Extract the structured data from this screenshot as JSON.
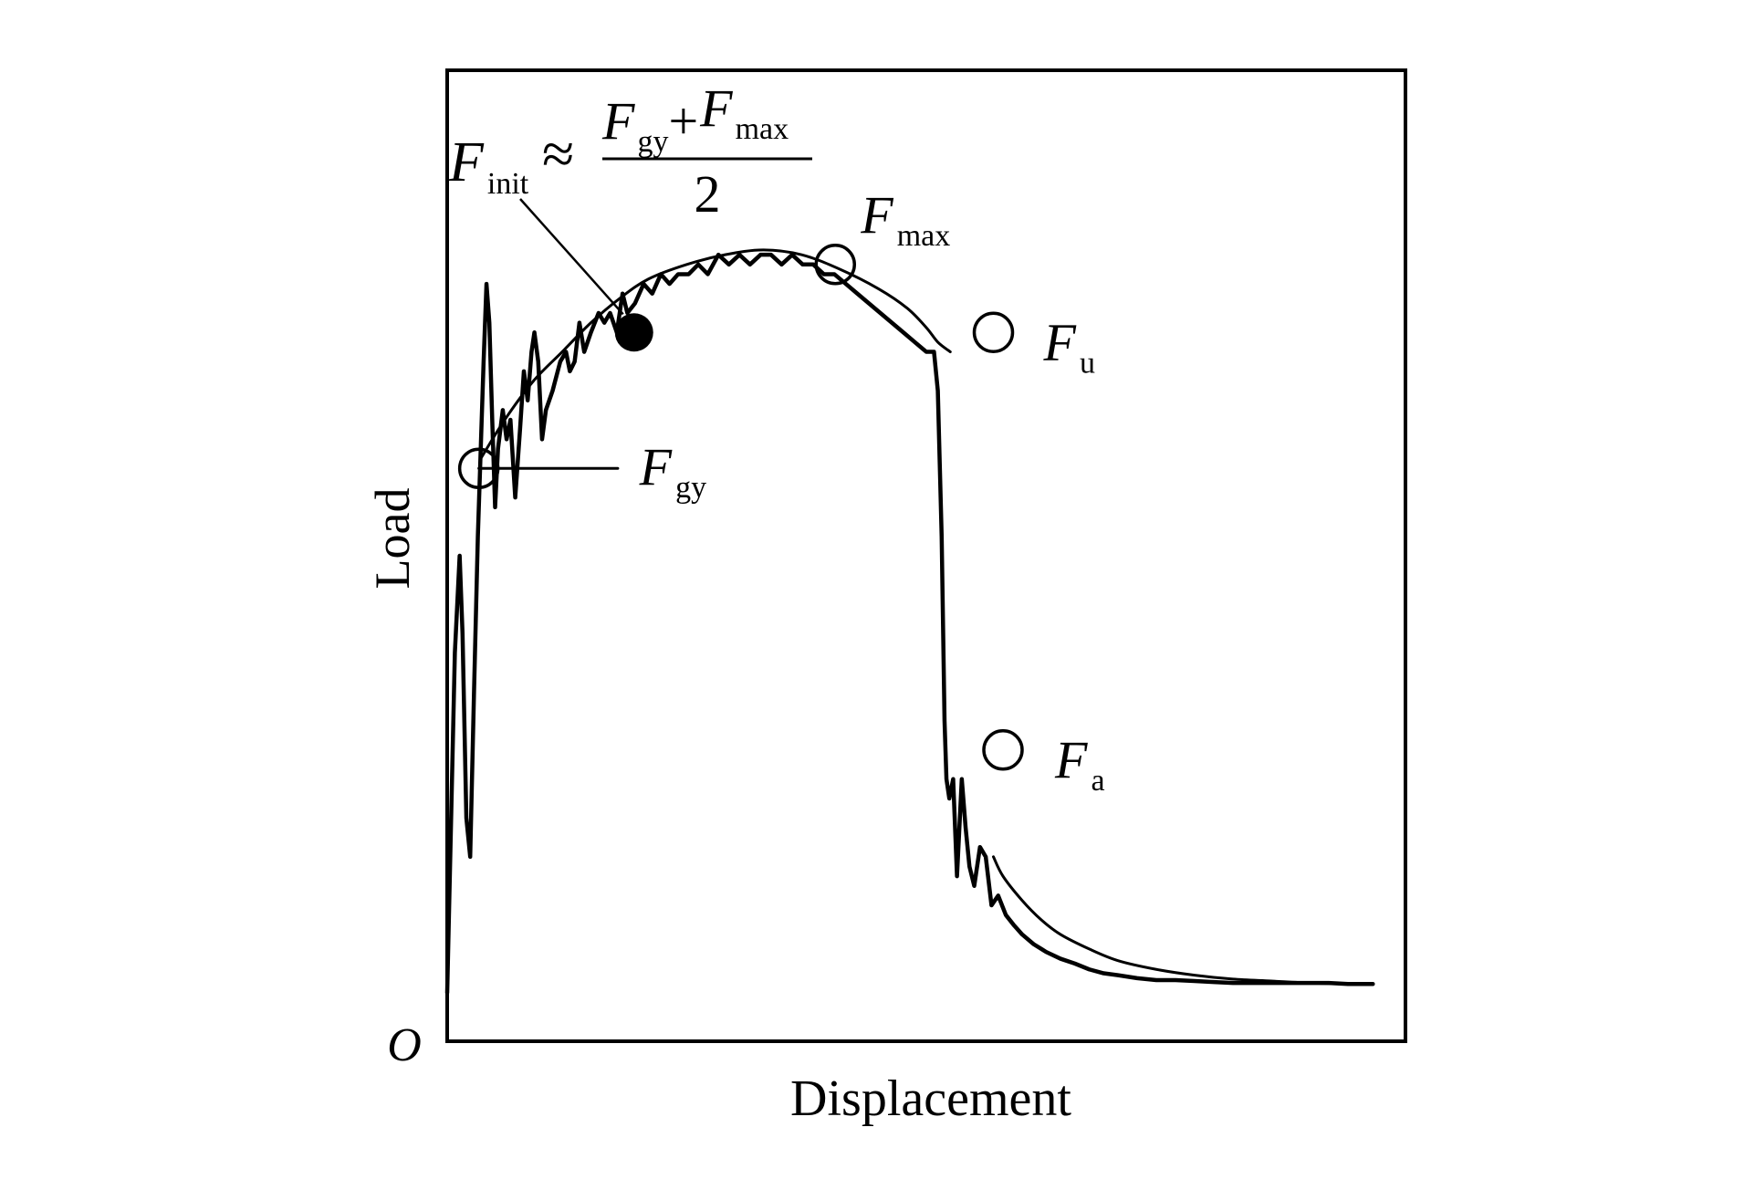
{
  "chart_data": {
    "type": "line",
    "xlabel": "Displacement",
    "ylabel": "Load",
    "origin_label": "O",
    "xlim": [
      0,
      1
    ],
    "ylim": [
      0,
      1
    ],
    "grid": false,
    "axis_ticks": false,
    "series": [
      {
        "color": "#000000",
        "style": "noisy",
        "points": [
          [
            0.0,
            0.05
          ],
          [
            0.008,
            0.4
          ],
          [
            0.013,
            0.5
          ],
          [
            0.016,
            0.42
          ],
          [
            0.02,
            0.23
          ],
          [
            0.024,
            0.19
          ],
          [
            0.028,
            0.36
          ],
          [
            0.032,
            0.52
          ],
          [
            0.038,
            0.7
          ],
          [
            0.041,
            0.78
          ],
          [
            0.044,
            0.74
          ],
          [
            0.047,
            0.64
          ],
          [
            0.05,
            0.55
          ],
          [
            0.053,
            0.61
          ],
          [
            0.058,
            0.65
          ],
          [
            0.062,
            0.62
          ],
          [
            0.066,
            0.64
          ],
          [
            0.071,
            0.56
          ],
          [
            0.076,
            0.63
          ],
          [
            0.08,
            0.69
          ],
          [
            0.084,
            0.66
          ],
          [
            0.088,
            0.71
          ],
          [
            0.091,
            0.73
          ],
          [
            0.095,
            0.7
          ],
          [
            0.099,
            0.62
          ],
          [
            0.103,
            0.65
          ],
          [
            0.11,
            0.67
          ],
          [
            0.118,
            0.7
          ],
          [
            0.124,
            0.71
          ],
          [
            0.128,
            0.69
          ],
          [
            0.133,
            0.7
          ],
          [
            0.138,
            0.74
          ],
          [
            0.143,
            0.71
          ],
          [
            0.15,
            0.73
          ],
          [
            0.158,
            0.75
          ],
          [
            0.164,
            0.74
          ],
          [
            0.17,
            0.75
          ],
          [
            0.177,
            0.73
          ],
          [
            0.183,
            0.77
          ],
          [
            0.188,
            0.75
          ],
          [
            0.196,
            0.76
          ],
          [
            0.205,
            0.78
          ],
          [
            0.214,
            0.77
          ],
          [
            0.223,
            0.79
          ],
          [
            0.232,
            0.78
          ],
          [
            0.241,
            0.79
          ],
          [
            0.252,
            0.79
          ],
          [
            0.262,
            0.8
          ],
          [
            0.272,
            0.79
          ],
          [
            0.283,
            0.81
          ],
          [
            0.294,
            0.8
          ],
          [
            0.305,
            0.81
          ],
          [
            0.316,
            0.8
          ],
          [
            0.327,
            0.81
          ],
          [
            0.338,
            0.81
          ],
          [
            0.349,
            0.8
          ],
          [
            0.36,
            0.81
          ],
          [
            0.371,
            0.8
          ],
          [
            0.382,
            0.8
          ],
          [
            0.393,
            0.79
          ],
          [
            0.404,
            0.79
          ],
          [
            0.416,
            0.78
          ],
          [
            0.428,
            0.77
          ],
          [
            0.44,
            0.76
          ],
          [
            0.452,
            0.75
          ],
          [
            0.464,
            0.74
          ],
          [
            0.476,
            0.73
          ],
          [
            0.488,
            0.72
          ],
          [
            0.5,
            0.71
          ],
          [
            0.508,
            0.71
          ],
          [
            0.512,
            0.67
          ],
          [
            0.516,
            0.52
          ],
          [
            0.519,
            0.33
          ],
          [
            0.521,
            0.27
          ],
          [
            0.524,
            0.25
          ],
          [
            0.528,
            0.27
          ],
          [
            0.532,
            0.17
          ],
          [
            0.537,
            0.27
          ],
          [
            0.541,
            0.22
          ],
          [
            0.545,
            0.18
          ],
          [
            0.55,
            0.16
          ],
          [
            0.556,
            0.2
          ],
          [
            0.562,
            0.19
          ],
          [
            0.568,
            0.14
          ],
          [
            0.575,
            0.15
          ],
          [
            0.583,
            0.13
          ],
          [
            0.591,
            0.12
          ],
          [
            0.6,
            0.11
          ],
          [
            0.612,
            0.1
          ],
          [
            0.625,
            0.092
          ],
          [
            0.64,
            0.085
          ],
          [
            0.655,
            0.08
          ],
          [
            0.67,
            0.074
          ],
          [
            0.685,
            0.07
          ],
          [
            0.7,
            0.068
          ],
          [
            0.72,
            0.065
          ],
          [
            0.74,
            0.063
          ],
          [
            0.76,
            0.063
          ],
          [
            0.78,
            0.062
          ],
          [
            0.8,
            0.061
          ],
          [
            0.82,
            0.06
          ],
          [
            0.84,
            0.06
          ],
          [
            0.86,
            0.06
          ],
          [
            0.88,
            0.06
          ],
          [
            0.9,
            0.06
          ],
          [
            0.92,
            0.06
          ],
          [
            0.94,
            0.059
          ],
          [
            0.96,
            0.059
          ],
          [
            0.966,
            0.059
          ]
        ]
      },
      {
        "color": "#000000",
        "style": "smooth",
        "points": [
          [
            0.035,
            0.6
          ],
          [
            0.06,
            0.64
          ],
          [
            0.09,
            0.68
          ],
          [
            0.12,
            0.71
          ],
          [
            0.15,
            0.74
          ],
          [
            0.18,
            0.765
          ],
          [
            0.21,
            0.785
          ],
          [
            0.25,
            0.8
          ],
          [
            0.29,
            0.81
          ],
          [
            0.33,
            0.815
          ],
          [
            0.37,
            0.81
          ],
          [
            0.41,
            0.795
          ],
          [
            0.45,
            0.775
          ],
          [
            0.48,
            0.755
          ],
          [
            0.5,
            0.735
          ],
          [
            0.512,
            0.72
          ],
          [
            0.525,
            0.71
          ]
        ]
      },
      {
        "color": "#000000",
        "style": "smooth",
        "points": [
          [
            0.57,
            0.19
          ],
          [
            0.58,
            0.17
          ],
          [
            0.6,
            0.145
          ],
          [
            0.62,
            0.125
          ],
          [
            0.64,
            0.11
          ],
          [
            0.67,
            0.095
          ],
          [
            0.7,
            0.083
          ],
          [
            0.74,
            0.074
          ],
          [
            0.78,
            0.068
          ],
          [
            0.82,
            0.064
          ],
          [
            0.86,
            0.062
          ],
          [
            0.9,
            0.06
          ],
          [
            0.94,
            0.059
          ],
          [
            0.966,
            0.059
          ]
        ]
      },
      {
        "color": "#000000",
        "style": "straight",
        "points": [
          [
            0.033,
            0.59
          ],
          [
            0.178,
            0.59
          ]
        ]
      }
    ],
    "annotations": [
      {
        "id": "F_gy",
        "base": "F",
        "sub": "gy",
        "point": [
          0.033,
          0.59
        ],
        "marker": "open-circle"
      },
      {
        "id": "F_max",
        "base": "F",
        "sub": "max",
        "point": [
          0.405,
          0.8
        ],
        "marker": "open-circle"
      },
      {
        "id": "F_u",
        "base": "F",
        "sub": "u",
        "point": [
          0.57,
          0.73
        ],
        "marker": "open-circle"
      },
      {
        "id": "F_a",
        "base": "F",
        "sub": "a",
        "point": [
          0.58,
          0.3
        ],
        "marker": "open-circle"
      },
      {
        "id": "F_init",
        "base": "F",
        "sub": "init",
        "point": [
          0.195,
          0.73
        ],
        "marker": "filled-circle",
        "formula": {
          "approx": "≈",
          "numerator": [
            {
              "base": "F",
              "sub": "gy"
            },
            {
              "op": "+"
            },
            {
              "base": "F",
              "sub": "max"
            }
          ],
          "denominator": "2"
        }
      }
    ]
  }
}
